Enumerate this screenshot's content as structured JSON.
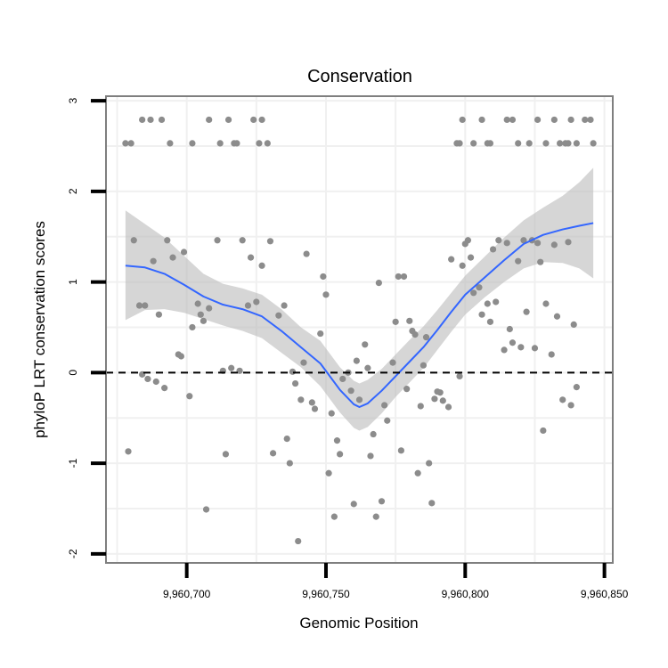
{
  "chart_data": {
    "type": "scatter",
    "title": "Conservation",
    "xlabel": "Genomic Position",
    "ylabel": "phyloP LRT conservation scores",
    "xlim": [
      9960671,
      9960853
    ],
    "ylim": [
      -2.1,
      3.05
    ],
    "x_ticks": [
      9960700,
      9960750,
      9960800,
      9960850
    ],
    "x_tick_labels": [
      "9,960,700",
      "9,960,750",
      "9,960,800",
      "9,960,850"
    ],
    "y_ticks": [
      -2,
      -1,
      0,
      1,
      2,
      3
    ],
    "y_tick_labels": [
      "-2",
      "-1",
      "0",
      "1",
      "2",
      "3"
    ],
    "grid": true,
    "reference_line": {
      "y": 0,
      "style": "dashed",
      "color": "#000000"
    },
    "colors": {
      "points": "#8c8c8c",
      "smooth_line": "#3366ff",
      "ribbon": "#bdbdbd",
      "panel_border": "#7f7f7f",
      "grid": "#f0f0f0"
    },
    "points": [
      [
        9960678,
        2.53
      ],
      [
        9960680,
        2.53
      ],
      [
        9960684,
        2.79
      ],
      [
        9960687,
        2.79
      ],
      [
        9960691,
        2.79
      ],
      [
        9960694,
        2.53
      ],
      [
        9960702,
        2.53
      ],
      [
        9960708,
        2.79
      ],
      [
        9960712,
        2.53
      ],
      [
        9960715,
        2.79
      ],
      [
        9960717,
        2.53
      ],
      [
        9960718,
        2.53
      ],
      [
        9960724,
        2.79
      ],
      [
        9960726,
        2.53
      ],
      [
        9960727,
        2.79
      ],
      [
        9960729,
        2.53
      ],
      [
        9960797,
        2.53
      ],
      [
        9960798,
        2.53
      ],
      [
        9960799,
        2.79
      ],
      [
        9960803,
        2.53
      ],
      [
        9960806,
        2.79
      ],
      [
        9960808,
        2.53
      ],
      [
        9960809,
        2.53
      ],
      [
        9960815,
        2.79
      ],
      [
        9960817,
        2.79
      ],
      [
        9960819,
        2.53
      ],
      [
        9960823,
        2.53
      ],
      [
        9960826,
        2.79
      ],
      [
        9960829,
        2.53
      ],
      [
        9960832,
        2.79
      ],
      [
        9960834,
        2.53
      ],
      [
        9960836,
        2.53
      ],
      [
        9960837,
        2.53
      ],
      [
        9960838,
        2.79
      ],
      [
        9960840,
        2.53
      ],
      [
        9960843,
        2.79
      ],
      [
        9960845,
        2.79
      ],
      [
        9960846,
        2.53
      ],
      [
        9960679,
        -0.87
      ],
      [
        9960681,
        1.46
      ],
      [
        9960683,
        0.74
      ],
      [
        9960684,
        -0.02
      ],
      [
        9960685,
        0.74
      ],
      [
        9960686,
        -0.07
      ],
      [
        9960688,
        1.23
      ],
      [
        9960689,
        -0.1
      ],
      [
        9960690,
        0.64
      ],
      [
        9960692,
        -0.17
      ],
      [
        9960693,
        1.46
      ],
      [
        9960695,
        1.27
      ],
      [
        9960697,
        0.2
      ],
      [
        9960698,
        0.18
      ],
      [
        9960699,
        1.33
      ],
      [
        9960701,
        -0.26
      ],
      [
        9960702,
        0.5
      ],
      [
        9960704,
        0.76
      ],
      [
        9960705,
        0.64
      ],
      [
        9960706,
        0.57
      ],
      [
        9960707,
        -1.51
      ],
      [
        9960708,
        0.71
      ],
      [
        9960711,
        1.46
      ],
      [
        9960713,
        0.02
      ],
      [
        9960714,
        -0.9
      ],
      [
        9960716,
        0.05
      ],
      [
        9960719,
        0.02
      ],
      [
        9960720,
        1.46
      ],
      [
        9960722,
        0.74
      ],
      [
        9960723,
        1.27
      ],
      [
        9960725,
        0.78
      ],
      [
        9960727,
        1.18
      ],
      [
        9960730,
        1.45
      ],
      [
        9960731,
        -0.89
      ],
      [
        9960733,
        0.63
      ],
      [
        9960735,
        0.74
      ],
      [
        9960736,
        -0.73
      ],
      [
        9960737,
        -1.0
      ],
      [
        9960738,
        0.01
      ],
      [
        9960739,
        -0.12
      ],
      [
        9960740,
        -1.86
      ],
      [
        9960741,
        -0.3
      ],
      [
        9960742,
        0.11
      ],
      [
        9960743,
        1.31
      ],
      [
        9960745,
        -0.33
      ],
      [
        9960746,
        -0.4
      ],
      [
        9960748,
        0.43
      ],
      [
        9960749,
        1.06
      ],
      [
        9960750,
        0.86
      ],
      [
        9960751,
        -1.11
      ],
      [
        9960752,
        -0.45
      ],
      [
        9960753,
        -1.59
      ],
      [
        9960754,
        -0.75
      ],
      [
        9960755,
        -0.9
      ],
      [
        9960756,
        -0.07
      ],
      [
        9960758,
        0.0
      ],
      [
        9960759,
        -0.2
      ],
      [
        9960760,
        -1.45
      ],
      [
        9960761,
        0.13
      ],
      [
        9960762,
        -0.3
      ],
      [
        9960764,
        0.31
      ],
      [
        9960765,
        0.05
      ],
      [
        9960766,
        -0.92
      ],
      [
        9960767,
        -0.68
      ],
      [
        9960768,
        -1.59
      ],
      [
        9960769,
        0.99
      ],
      [
        9960770,
        -1.42
      ],
      [
        9960771,
        -0.36
      ],
      [
        9960772,
        -0.53
      ],
      [
        9960774,
        0.11
      ],
      [
        9960775,
        0.56
      ],
      [
        9960776,
        1.06
      ],
      [
        9960777,
        -0.86
      ],
      [
        9960778,
        1.06
      ],
      [
        9960779,
        -0.18
      ],
      [
        9960780,
        0.57
      ],
      [
        9960781,
        0.46
      ],
      [
        9960782,
        0.42
      ],
      [
        9960783,
        -1.11
      ],
      [
        9960784,
        -0.37
      ],
      [
        9960785,
        0.08
      ],
      [
        9960786,
        0.39
      ],
      [
        9960787,
        -1.0
      ],
      [
        9960788,
        -1.44
      ],
      [
        9960789,
        -0.29
      ],
      [
        9960790,
        -0.21
      ],
      [
        9960791,
        -0.22
      ],
      [
        9960792,
        -0.31
      ],
      [
        9960794,
        -0.38
      ],
      [
        9960795,
        1.25
      ],
      [
        9960798,
        -0.04
      ],
      [
        9960799,
        1.18
      ],
      [
        9960800,
        1.42
      ],
      [
        9960801,
        1.46
      ],
      [
        9960802,
        1.27
      ],
      [
        9960803,
        0.88
      ],
      [
        9960805,
        0.94
      ],
      [
        9960806,
        0.64
      ],
      [
        9960808,
        0.76
      ],
      [
        9960809,
        0.56
      ],
      [
        9960810,
        1.36
      ],
      [
        9960811,
        0.78
      ],
      [
        9960812,
        1.46
      ],
      [
        9960814,
        0.25
      ],
      [
        9960815,
        1.43
      ],
      [
        9960816,
        0.48
      ],
      [
        9960817,
        0.33
      ],
      [
        9960819,
        1.23
      ],
      [
        9960820,
        0.28
      ],
      [
        9960821,
        1.46
      ],
      [
        9960822,
        0.67
      ],
      [
        9960824,
        1.46
      ],
      [
        9960825,
        0.27
      ],
      [
        9960826,
        1.43
      ],
      [
        9960827,
        1.22
      ],
      [
        9960828,
        -0.64
      ],
      [
        9960829,
        0.76
      ],
      [
        9960831,
        0.2
      ],
      [
        9960832,
        1.41
      ],
      [
        9960833,
        0.62
      ],
      [
        9960835,
        -0.3
      ],
      [
        9960837,
        1.44
      ],
      [
        9960838,
        -0.36
      ],
      [
        9960839,
        0.53
      ],
      [
        9960840,
        -0.16
      ]
    ],
    "smooth": [
      [
        9960678,
        1.18
      ],
      [
        9960685,
        1.16
      ],
      [
        9960692,
        1.09
      ],
      [
        9960699,
        0.97
      ],
      [
        9960706,
        0.84
      ],
      [
        9960713,
        0.75
      ],
      [
        9960720,
        0.7
      ],
      [
        9960727,
        0.62
      ],
      [
        9960734,
        0.46
      ],
      [
        9960741,
        0.28
      ],
      [
        9960748,
        0.1
      ],
      [
        9960755,
        -0.19
      ],
      [
        9960760,
        -0.35
      ],
      [
        9960762,
        -0.38
      ],
      [
        9960765,
        -0.34
      ],
      [
        9960770,
        -0.2
      ],
      [
        9960775,
        -0.04
      ],
      [
        9960780,
        0.12
      ],
      [
        9960785,
        0.28
      ],
      [
        9960790,
        0.47
      ],
      [
        9960795,
        0.67
      ],
      [
        9960800,
        0.86
      ],
      [
        9960807,
        1.05
      ],
      [
        9960814,
        1.24
      ],
      [
        9960821,
        1.42
      ],
      [
        9960828,
        1.52
      ],
      [
        9960835,
        1.58
      ],
      [
        9960841,
        1.62
      ],
      [
        9960846,
        1.65
      ]
    ],
    "ribbon_upper": [
      [
        9960678,
        1.79
      ],
      [
        9960685,
        1.64
      ],
      [
        9960692,
        1.49
      ],
      [
        9960699,
        1.29
      ],
      [
        9960706,
        1.09
      ],
      [
        9960713,
        0.98
      ],
      [
        9960720,
        0.93
      ],
      [
        9960727,
        0.86
      ],
      [
        9960734,
        0.7
      ],
      [
        9960741,
        0.5
      ],
      [
        9960748,
        0.35
      ],
      [
        9960755,
        0.06
      ],
      [
        9960760,
        -0.09
      ],
      [
        9960762,
        -0.12
      ],
      [
        9960765,
        -0.08
      ],
      [
        9960770,
        0.04
      ],
      [
        9960775,
        0.2
      ],
      [
        9960780,
        0.36
      ],
      [
        9960785,
        0.51
      ],
      [
        9960790,
        0.69
      ],
      [
        9960795,
        0.88
      ],
      [
        9960800,
        1.07
      ],
      [
        9960807,
        1.28
      ],
      [
        9960814,
        1.49
      ],
      [
        9960821,
        1.68
      ],
      [
        9960828,
        1.82
      ],
      [
        9960835,
        1.95
      ],
      [
        9960841,
        2.1
      ],
      [
        9960846,
        2.26
      ]
    ],
    "ribbon_lower": [
      [
        9960678,
        0.58
      ],
      [
        9960685,
        0.69
      ],
      [
        9960692,
        0.7
      ],
      [
        9960699,
        0.66
      ],
      [
        9960706,
        0.59
      ],
      [
        9960713,
        0.52
      ],
      [
        9960720,
        0.46
      ],
      [
        9960727,
        0.38
      ],
      [
        9960734,
        0.22
      ],
      [
        9960741,
        0.06
      ],
      [
        9960748,
        -0.15
      ],
      [
        9960755,
        -0.44
      ],
      [
        9960760,
        -0.61
      ],
      [
        9960762,
        -0.64
      ],
      [
        9960765,
        -0.6
      ],
      [
        9960770,
        -0.45
      ],
      [
        9960775,
        -0.27
      ],
      [
        9960780,
        -0.11
      ],
      [
        9960785,
        0.05
      ],
      [
        9960790,
        0.25
      ],
      [
        9960795,
        0.45
      ],
      [
        9960800,
        0.64
      ],
      [
        9960807,
        0.83
      ],
      [
        9960814,
        1.0
      ],
      [
        9960821,
        1.15
      ],
      [
        9960828,
        1.22
      ],
      [
        9960835,
        1.21
      ],
      [
        9960841,
        1.15
      ],
      [
        9960846,
        1.04
      ]
    ]
  }
}
